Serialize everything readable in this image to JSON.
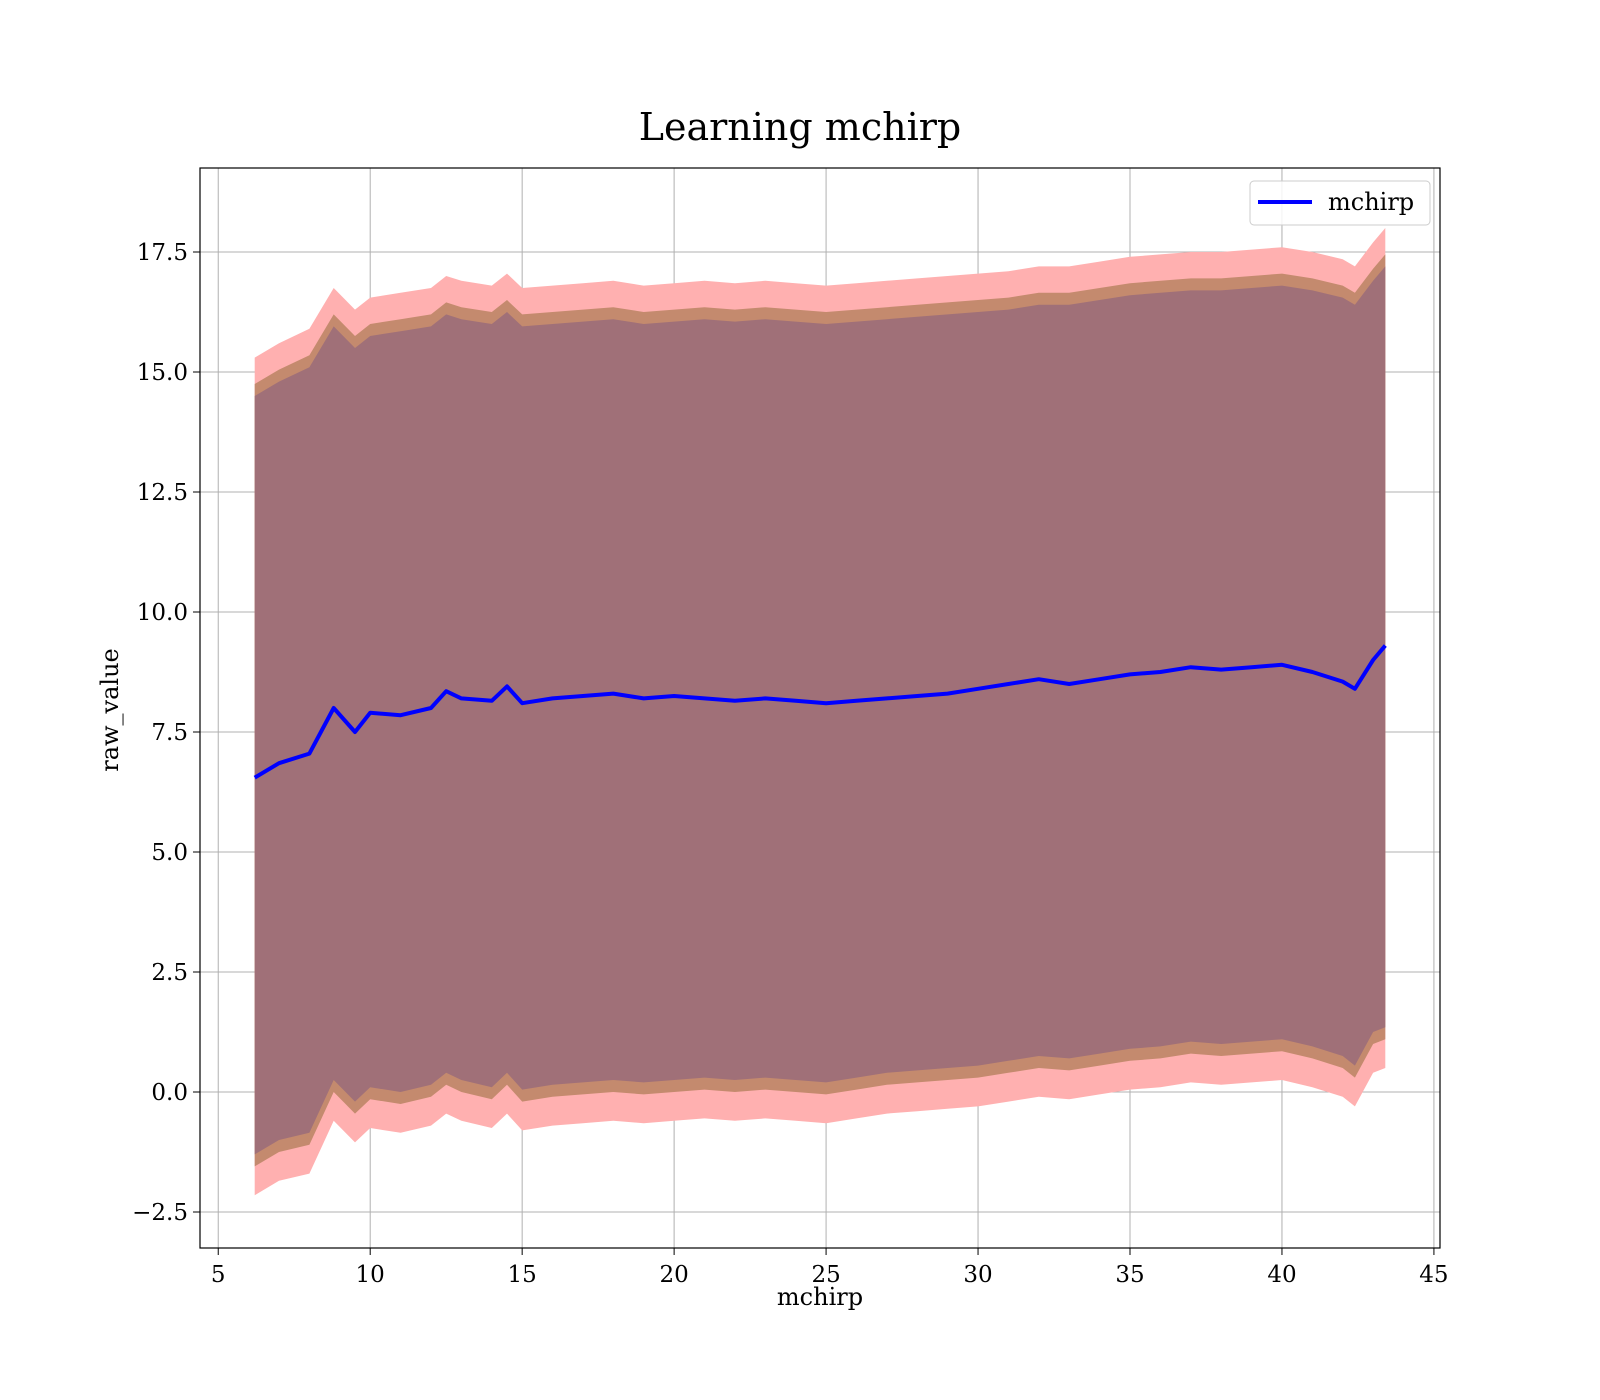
{
  "chart_data": {
    "type": "line",
    "title": "Learning mchirp",
    "xlabel": "mchirp",
    "ylabel": "raw_value",
    "xlim": [
      4.4,
      45.2
    ],
    "ylim": [
      -3.25,
      19.25
    ],
    "xticks": [
      5,
      10,
      15,
      20,
      25,
      30,
      35,
      40,
      45
    ],
    "xtick_labels": [
      "5",
      "10",
      "15",
      "20",
      "25",
      "30",
      "35",
      "40",
      "45"
    ],
    "yticks": [
      -2.5,
      0.0,
      2.5,
      5.0,
      7.5,
      10.0,
      12.5,
      15.0,
      17.5
    ],
    "ytick_labels": [
      "−2.5",
      "0.0",
      "2.5",
      "5.0",
      "7.5",
      "10.0",
      "12.5",
      "15.0",
      "17.5"
    ],
    "grid": true,
    "legend_position": "top-right",
    "colors": {
      "line": "#0000ff",
      "band_outer": "#ffb0b0",
      "band_middle": "#c48a6e",
      "band_inner": "#a07078"
    },
    "x": [
      6.2,
      7,
      8,
      8.8,
      9.5,
      10,
      11,
      12,
      12.5,
      13,
      14,
      14.5,
      15,
      16,
      17,
      18,
      19,
      20,
      21,
      22,
      23,
      24,
      25,
      26,
      27,
      28,
      29,
      30,
      31,
      32,
      33,
      34,
      35,
      36,
      37,
      38,
      39,
      40,
      41,
      42,
      42.4,
      43,
      43.4
    ],
    "series": [
      {
        "name": "mchirp",
        "values": [
          6.55,
          6.85,
          7.05,
          8.0,
          7.5,
          7.9,
          7.85,
          8.0,
          8.35,
          8.2,
          8.15,
          8.45,
          8.1,
          8.2,
          8.25,
          8.3,
          8.2,
          8.25,
          8.2,
          8.15,
          8.2,
          8.15,
          8.1,
          8.15,
          8.2,
          8.25,
          8.3,
          8.4,
          8.5,
          8.6,
          8.5,
          8.6,
          8.7,
          8.75,
          8.85,
          8.8,
          8.85,
          8.9,
          8.75,
          8.55,
          8.4,
          9.0,
          9.3
        ],
        "band_outer": [
          [
            -2.15,
            15.3
          ],
          [
            -1.85,
            15.6
          ],
          [
            -1.7,
            15.9
          ],
          [
            -0.6,
            16.75
          ],
          [
            -1.05,
            16.3
          ],
          [
            -0.75,
            16.55
          ],
          [
            -0.85,
            16.65
          ],
          [
            -0.7,
            16.75
          ],
          [
            -0.45,
            17.0
          ],
          [
            -0.6,
            16.9
          ],
          [
            -0.75,
            16.8
          ],
          [
            -0.45,
            17.05
          ],
          [
            -0.8,
            16.75
          ],
          [
            -0.7,
            16.8
          ],
          [
            -0.65,
            16.85
          ],
          [
            -0.6,
            16.9
          ],
          [
            -0.65,
            16.8
          ],
          [
            -0.6,
            16.85
          ],
          [
            -0.55,
            16.9
          ],
          [
            -0.6,
            16.85
          ],
          [
            -0.55,
            16.9
          ],
          [
            -0.6,
            16.85
          ],
          [
            -0.65,
            16.8
          ],
          [
            -0.55,
            16.85
          ],
          [
            -0.45,
            16.9
          ],
          [
            -0.4,
            16.95
          ],
          [
            -0.35,
            17.0
          ],
          [
            -0.3,
            17.05
          ],
          [
            -0.2,
            17.1
          ],
          [
            -0.1,
            17.2
          ],
          [
            -0.15,
            17.2
          ],
          [
            -0.05,
            17.3
          ],
          [
            0.05,
            17.4
          ],
          [
            0.1,
            17.45
          ],
          [
            0.2,
            17.5
          ],
          [
            0.15,
            17.5
          ],
          [
            0.2,
            17.55
          ],
          [
            0.25,
            17.6
          ],
          [
            0.1,
            17.5
          ],
          [
            -0.1,
            17.35
          ],
          [
            -0.3,
            17.2
          ],
          [
            0.4,
            17.7
          ],
          [
            0.5,
            18.0
          ]
        ]
      }
    ]
  }
}
